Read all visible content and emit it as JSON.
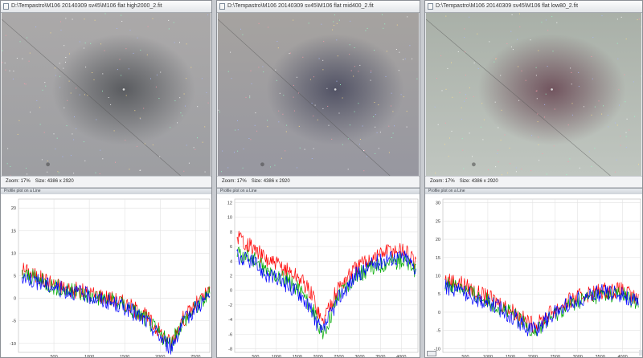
{
  "windows": [
    {
      "title": "D:\\Tempastro\\M106 20140309 sv45\\M106 flat high2000_2.fit",
      "zoom_label": "Zoom: 17%",
      "size_label": "Size: 4386 x 2920",
      "plot_title": "Profile plot on a Line",
      "colors": {
        "top": "#aba9a9",
        "mid": "#9d9ea2",
        "vignette": "#56585c"
      },
      "chart_data": {
        "type": "line",
        "xlim": [
          0,
          2700
        ],
        "ylim": [
          -12,
          22
        ],
        "x_ticks": [
          500,
          1000,
          1500,
          2000,
          2500
        ],
        "y_ticks": [
          -10,
          -5,
          0,
          5,
          10,
          15,
          20
        ],
        "series": [
          {
            "color": "#ff0000",
            "values": [
              [
                50,
                6.5
              ],
              [
                300,
                4.5
              ],
              [
                600,
                2.5
              ],
              [
                900,
                1.5
              ],
              [
                1200,
                0.5
              ],
              [
                1500,
                -1
              ],
              [
                1800,
                -4
              ],
              [
                2000,
                -7.5
              ],
              [
                2150,
                -10
              ],
              [
                2300,
                -5
              ],
              [
                2500,
                -1.5
              ],
              [
                2700,
                1.5
              ]
            ]
          },
          {
            "color": "#00aa00",
            "values": [
              [
                50,
                5.5
              ],
              [
                300,
                4
              ],
              [
                600,
                2
              ],
              [
                900,
                1
              ],
              [
                1200,
                0
              ],
              [
                1500,
                -1.5
              ],
              [
                1800,
                -4.5
              ],
              [
                2000,
                -8
              ],
              [
                2150,
                -10.5
              ],
              [
                2300,
                -5.5
              ],
              [
                2500,
                -2
              ],
              [
                2700,
                1
              ]
            ]
          },
          {
            "color": "#0000ff",
            "values": [
              [
                50,
                5
              ],
              [
                300,
                3.5
              ],
              [
                600,
                2
              ],
              [
                900,
                1
              ],
              [
                1200,
                -0.5
              ],
              [
                1500,
                -2
              ],
              [
                1800,
                -5
              ],
              [
                2000,
                -8.5
              ],
              [
                2150,
                -11
              ],
              [
                2300,
                -6
              ],
              [
                2500,
                -2
              ],
              [
                2700,
                0.5
              ]
            ]
          }
        ]
      }
    },
    {
      "title": "D:\\Tempastro\\M106 20140309 sv45\\M106 flat mid400_2.fit",
      "zoom_label": "Zoom: 17%",
      "size_label": "Size: 4386 x 2920",
      "plot_title": "Profile plot on a Line",
      "colors": {
        "top": "#a6a3a0",
        "mid": "#9797a0",
        "vignette": "#4e4f62"
      },
      "chart_data": {
        "type": "line",
        "xlim": [
          0,
          4400
        ],
        "ylim": [
          -8.5,
          12.5
        ],
        "x_ticks": [
          500,
          1000,
          1500,
          2000,
          2500,
          3000,
          3500,
          4000
        ],
        "y_ticks": [
          -8,
          -6,
          -4,
          -2,
          0,
          2,
          4,
          6,
          8,
          10,
          12
        ],
        "series": [
          {
            "color": "#ff0000",
            "values": [
              [
                50,
                7.5
              ],
              [
                400,
                6
              ],
              [
                800,
                4
              ],
              [
                1200,
                3
              ],
              [
                1600,
                1.5
              ],
              [
                1900,
                -1
              ],
              [
                2100,
                -4.5
              ],
              [
                2200,
                -3
              ],
              [
                2500,
                0.5
              ],
              [
                2900,
                3
              ],
              [
                3300,
                4.5
              ],
              [
                3700,
                5.5
              ],
              [
                4100,
                5.5
              ],
              [
                4350,
                3.5
              ]
            ]
          },
          {
            "color": "#00aa00",
            "values": [
              [
                50,
                5
              ],
              [
                400,
                4.5
              ],
              [
                800,
                2.5
              ],
              [
                1200,
                1.5
              ],
              [
                1600,
                0
              ],
              [
                1900,
                -3
              ],
              [
                2100,
                -6.5
              ],
              [
                2200,
                -5
              ],
              [
                2500,
                -0.5
              ],
              [
                2900,
                2
              ],
              [
                3300,
                3
              ],
              [
                3700,
                4
              ],
              [
                4100,
                4
              ],
              [
                4350,
                2.5
              ]
            ]
          },
          {
            "color": "#0000ff",
            "values": [
              [
                50,
                4.5
              ],
              [
                400,
                4
              ],
              [
                800,
                2
              ],
              [
                1200,
                1
              ],
              [
                1600,
                -0.5
              ],
              [
                1900,
                -3.5
              ],
              [
                2100,
                -6
              ],
              [
                2200,
                -4.5
              ],
              [
                2500,
                -1
              ],
              [
                2900,
                2
              ],
              [
                3300,
                3.5
              ],
              [
                3700,
                4.5
              ],
              [
                4100,
                4.5
              ],
              [
                4350,
                3
              ]
            ]
          }
        ]
      }
    },
    {
      "title": "D:\\Tempastro\\M106 20140309 sv45\\M106 flat low80_2.fit",
      "zoom_label": "Zoom: 17%",
      "size_label": "Size: 4386 x 2920",
      "plot_title": "Profile plot on a Line",
      "colors": {
        "top": "#a9b0a8",
        "mid": "#c0c6c0",
        "vignette": "#6e4f5a"
      },
      "chart_data": {
        "type": "line",
        "xlim": [
          0,
          4400
        ],
        "ylim": [
          -11,
          31
        ],
        "x_ticks": [
          500,
          1000,
          1500,
          2000,
          2500,
          3000,
          3500,
          4000
        ],
        "y_ticks": [
          -10,
          -5,
          0,
          5,
          10,
          15,
          20,
          25,
          30
        ],
        "series": [
          {
            "color": "#ff0000",
            "values": [
              [
                50,
                9
              ],
              [
                400,
                8
              ],
              [
                800,
                5
              ],
              [
                1200,
                3
              ],
              [
                1600,
                0
              ],
              [
                1900,
                -3
              ],
              [
                2100,
                -3.5
              ],
              [
                2400,
                0
              ],
              [
                2800,
                3
              ],
              [
                3200,
                5
              ],
              [
                3600,
                6
              ],
              [
                4000,
                6
              ],
              [
                4350,
                3
              ]
            ]
          },
          {
            "color": "#00aa00",
            "values": [
              [
                50,
                8
              ],
              [
                400,
                7
              ],
              [
                800,
                4
              ],
              [
                1200,
                2
              ],
              [
                1600,
                -1
              ],
              [
                1900,
                -4
              ],
              [
                2100,
                -5
              ],
              [
                2400,
                -1.5
              ],
              [
                2800,
                2
              ],
              [
                3200,
                4
              ],
              [
                3600,
                5
              ],
              [
                4000,
                5
              ],
              [
                4350,
                2
              ]
            ]
          },
          {
            "color": "#0000ff",
            "values": [
              [
                50,
                7
              ],
              [
                400,
                6
              ],
              [
                800,
                3.5
              ],
              [
                1200,
                1.5
              ],
              [
                1600,
                -1.5
              ],
              [
                1900,
                -4.5
              ],
              [
                2100,
                -4.5
              ],
              [
                2400,
                -1
              ],
              [
                2800,
                2.5
              ],
              [
                3200,
                4.5
              ],
              [
                3600,
                5.5
              ],
              [
                4000,
                5
              ],
              [
                4350,
                2
              ]
            ]
          }
        ]
      }
    }
  ]
}
